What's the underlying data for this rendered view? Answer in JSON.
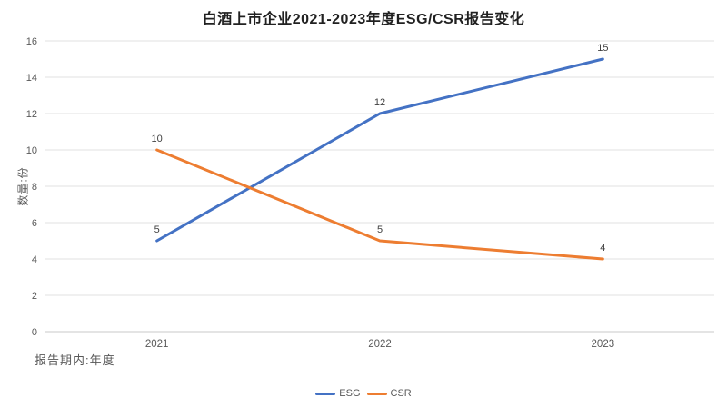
{
  "page": {
    "background": "#FFFFFF"
  },
  "style": {
    "grid_color": "#E2E2E2",
    "axis_line_color": "#C9C9C9",
    "tick_label_color": "#595959",
    "data_label_color": "#404040",
    "title_color": "#212121",
    "legend_text_color": "#595959"
  },
  "chart_data": {
    "type": "line",
    "title": "白酒上市企业2021-2023年度ESG/CSR报告变化",
    "categories": [
      "2021",
      "2022",
      "2023"
    ],
    "series": [
      {
        "name": "ESG",
        "values": [
          5,
          12,
          15
        ],
        "color": "#4472C4"
      },
      {
        "name": "CSR",
        "values": [
          10,
          5,
          4
        ],
        "color": "#ED7D31"
      }
    ],
    "ylabel": "数量:份",
    "xlabel": "报告期内:年度",
    "ylim": [
      0,
      16
    ],
    "ytick_interval": 2,
    "yticks": [
      0,
      2,
      4,
      6,
      8,
      10,
      12,
      14,
      16
    ],
    "grid": true,
    "data_labels": true,
    "legend_position": "bottom-center"
  }
}
